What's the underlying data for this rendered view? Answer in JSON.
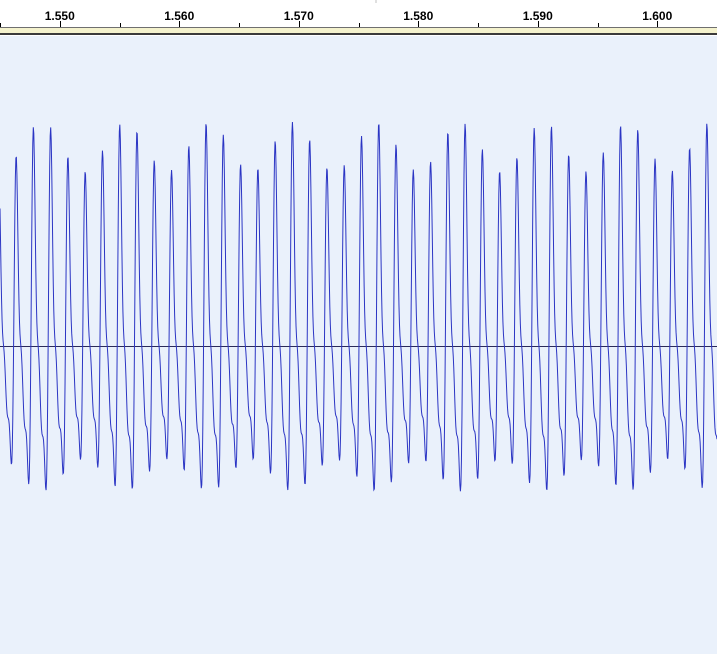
{
  "timeline": {
    "unit": "seconds",
    "ticks": [
      "1.550",
      "1.560",
      "1.570",
      "1.580",
      "1.590",
      "1.600"
    ]
  },
  "track": {
    "background_color": "#eaf1fb",
    "waveform_color": "#2b35c4",
    "baseline_color": "#2a2a5a"
  },
  "chart_data": {
    "type": "line",
    "x_range": [
      1.545,
      1.605
    ],
    "y_range": [
      -1,
      1
    ],
    "series": [
      {
        "x_start": 1.545,
        "x_end": 1.605,
        "fundamental_hz": 692,
        "partials": [
          {
            "harmonic": 1,
            "amplitude": 0.58
          },
          {
            "harmonic": 2,
            "amplitude": 0.28
          },
          {
            "harmonic": 3,
            "amplitude": 0.13
          }
        ],
        "envelope_period_s": 0.007,
        "envelope_depth": 0.22,
        "peak_amplitude": 0.73
      }
    ]
  }
}
